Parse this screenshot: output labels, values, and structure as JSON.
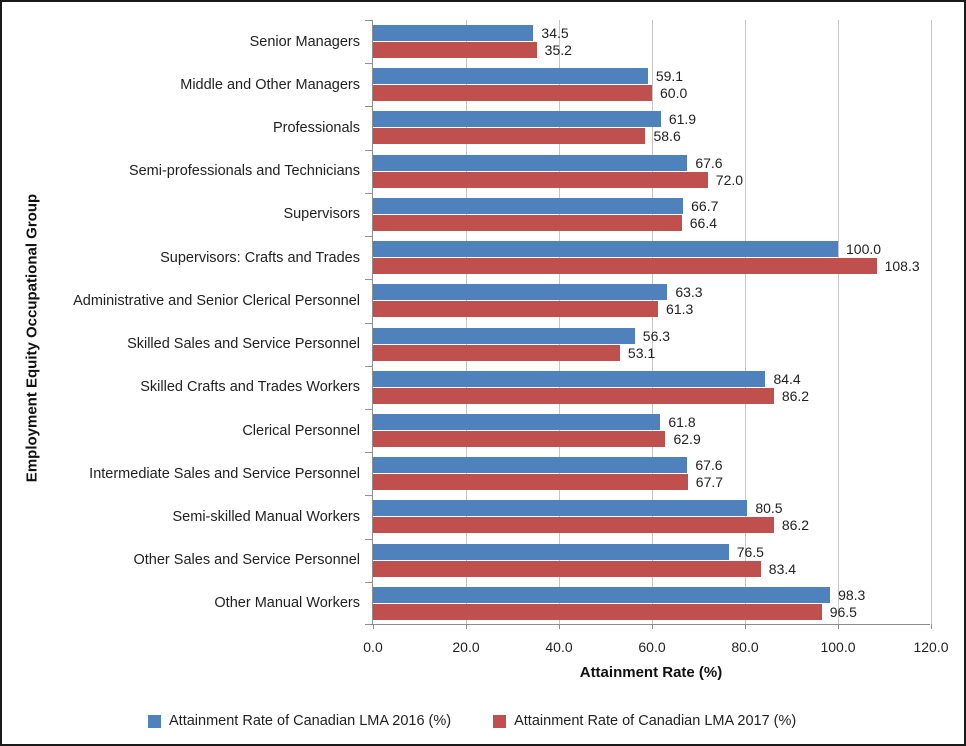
{
  "chart_data": {
    "type": "bar",
    "orientation": "horizontal",
    "title": "",
    "xlabel": "Attainment Rate (%)",
    "ylabel": "Employment Equity Occupational Group",
    "xlim": [
      0,
      120
    ],
    "x_ticks": [
      "0.0",
      "20.0",
      "40.0",
      "60.0",
      "80.0",
      "100.0",
      "120.0"
    ],
    "grid": true,
    "legend_position": "bottom",
    "value_labels": true,
    "axis_color": "#8e8e8e",
    "gridline_color": "#c6c6c6",
    "categories": [
      "Senior Managers",
      "Middle and Other Managers",
      "Professionals",
      "Semi-professionals and Technicians",
      "Supervisors",
      "Supervisors: Crafts and Trades",
      "Administrative and Senior Clerical Personnel",
      "Skilled Sales and Service Personnel",
      "Skilled Crafts and Trades Workers",
      "Clerical Personnel",
      "Intermediate Sales and Service Personnel",
      "Semi-skilled Manual Workers",
      "Other Sales and Service Personnel",
      "Other Manual Workers"
    ],
    "series": [
      {
        "name": "Attainment Rate of Canadian LMA 2016 (%)",
        "color": "#4F81BD",
        "values": [
          34.5,
          59.1,
          61.9,
          67.6,
          66.7,
          100.0,
          63.3,
          56.3,
          84.4,
          61.8,
          67.6,
          80.5,
          76.5,
          98.3
        ]
      },
      {
        "name": "Attainment Rate of Canadian LMA 2017 (%)",
        "color": "#C0504D",
        "values": [
          35.2,
          60.0,
          58.6,
          72.0,
          66.4,
          108.3,
          61.3,
          53.1,
          86.2,
          62.9,
          67.7,
          86.2,
          83.4,
          96.5
        ]
      }
    ]
  }
}
